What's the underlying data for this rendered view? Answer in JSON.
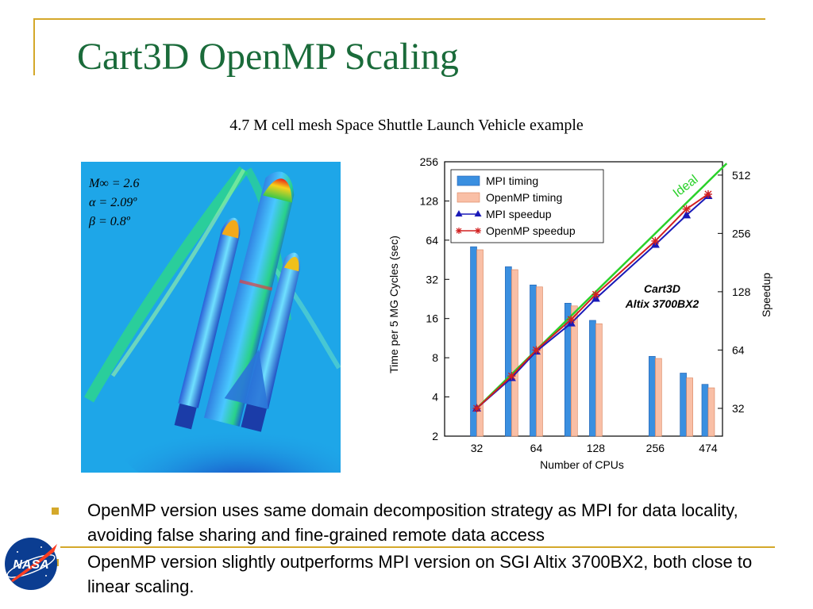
{
  "slide": {
    "title": "Cart3D OpenMP Scaling",
    "subtitle": "4.7 M cell mesh Space Shuttle Launch Vehicle example"
  },
  "simulation": {
    "mach": "M∞ = 2.6",
    "alpha": "α = 2.09º",
    "beta": "β = 0.8º",
    "background_color": "#1ea6e8"
  },
  "logo": {
    "text": "NASA"
  },
  "bullets": [
    "OpenMP version uses same domain decomposition strategy as MPI for data locality, avoiding false sharing and fine-grained remote data access",
    "OpenMP version slightly outperforms MPI version on SGI Altix 3700BX2, both close to linear scaling."
  ],
  "chart_data": {
    "type": "bar",
    "xlabel": "Number of CPUs",
    "ylabel_left": "Time per 5 MG Cycles  (sec)",
    "ylabel_right": "Speedup",
    "x_ticks": [
      "32",
      "64",
      "128",
      "256",
      "474"
    ],
    "left_axis": {
      "scale": "log2",
      "range": [
        2,
        256
      ],
      "ticks": [
        "2",
        "4",
        "8",
        "16",
        "32",
        "64",
        "128",
        "256"
      ]
    },
    "right_axis": {
      "scale": "log2",
      "range": [
        23,
        600
      ],
      "ticks": [
        "32",
        "64",
        "128",
        "256",
        "512"
      ]
    },
    "cpus": [
      32,
      48,
      64,
      96,
      128,
      256,
      368,
      474
    ],
    "series": [
      {
        "name": "MPI timing",
        "kind": "bar",
        "color": "#3a8fe0",
        "values": [
          57,
          40,
          29,
          21,
          15.5,
          8.2,
          6.1,
          5.0
        ]
      },
      {
        "name": "OpenMP timing",
        "kind": "bar",
        "color": "#f9bfa6",
        "values": [
          54,
          38,
          28,
          20,
          14.6,
          7.9,
          5.6,
          4.7
        ]
      },
      {
        "name": "MPI speedup",
        "kind": "line",
        "color": "#1a1ab8",
        "marker": "triangle",
        "x": [
          32,
          48,
          64,
          96,
          128,
          256,
          368,
          474
        ],
        "values": [
          32,
          46,
          63,
          88,
          118,
          224,
          318,
          400
        ]
      },
      {
        "name": "OpenMP speedup",
        "kind": "line",
        "color": "#d22020",
        "marker": "star",
        "x": [
          32,
          48,
          64,
          96,
          128,
          256,
          368,
          474
        ],
        "values": [
          32,
          47,
          64,
          92,
          124,
          234,
          342,
          408
        ]
      }
    ],
    "ideal": {
      "label": "Ideal",
      "color": "#2ad12a",
      "x": [
        32,
        474
      ],
      "values": [
        32,
        474
      ]
    },
    "annotation": [
      "Cart3D",
      "Altix 3700BX2"
    ],
    "legend_position": "top-left"
  }
}
